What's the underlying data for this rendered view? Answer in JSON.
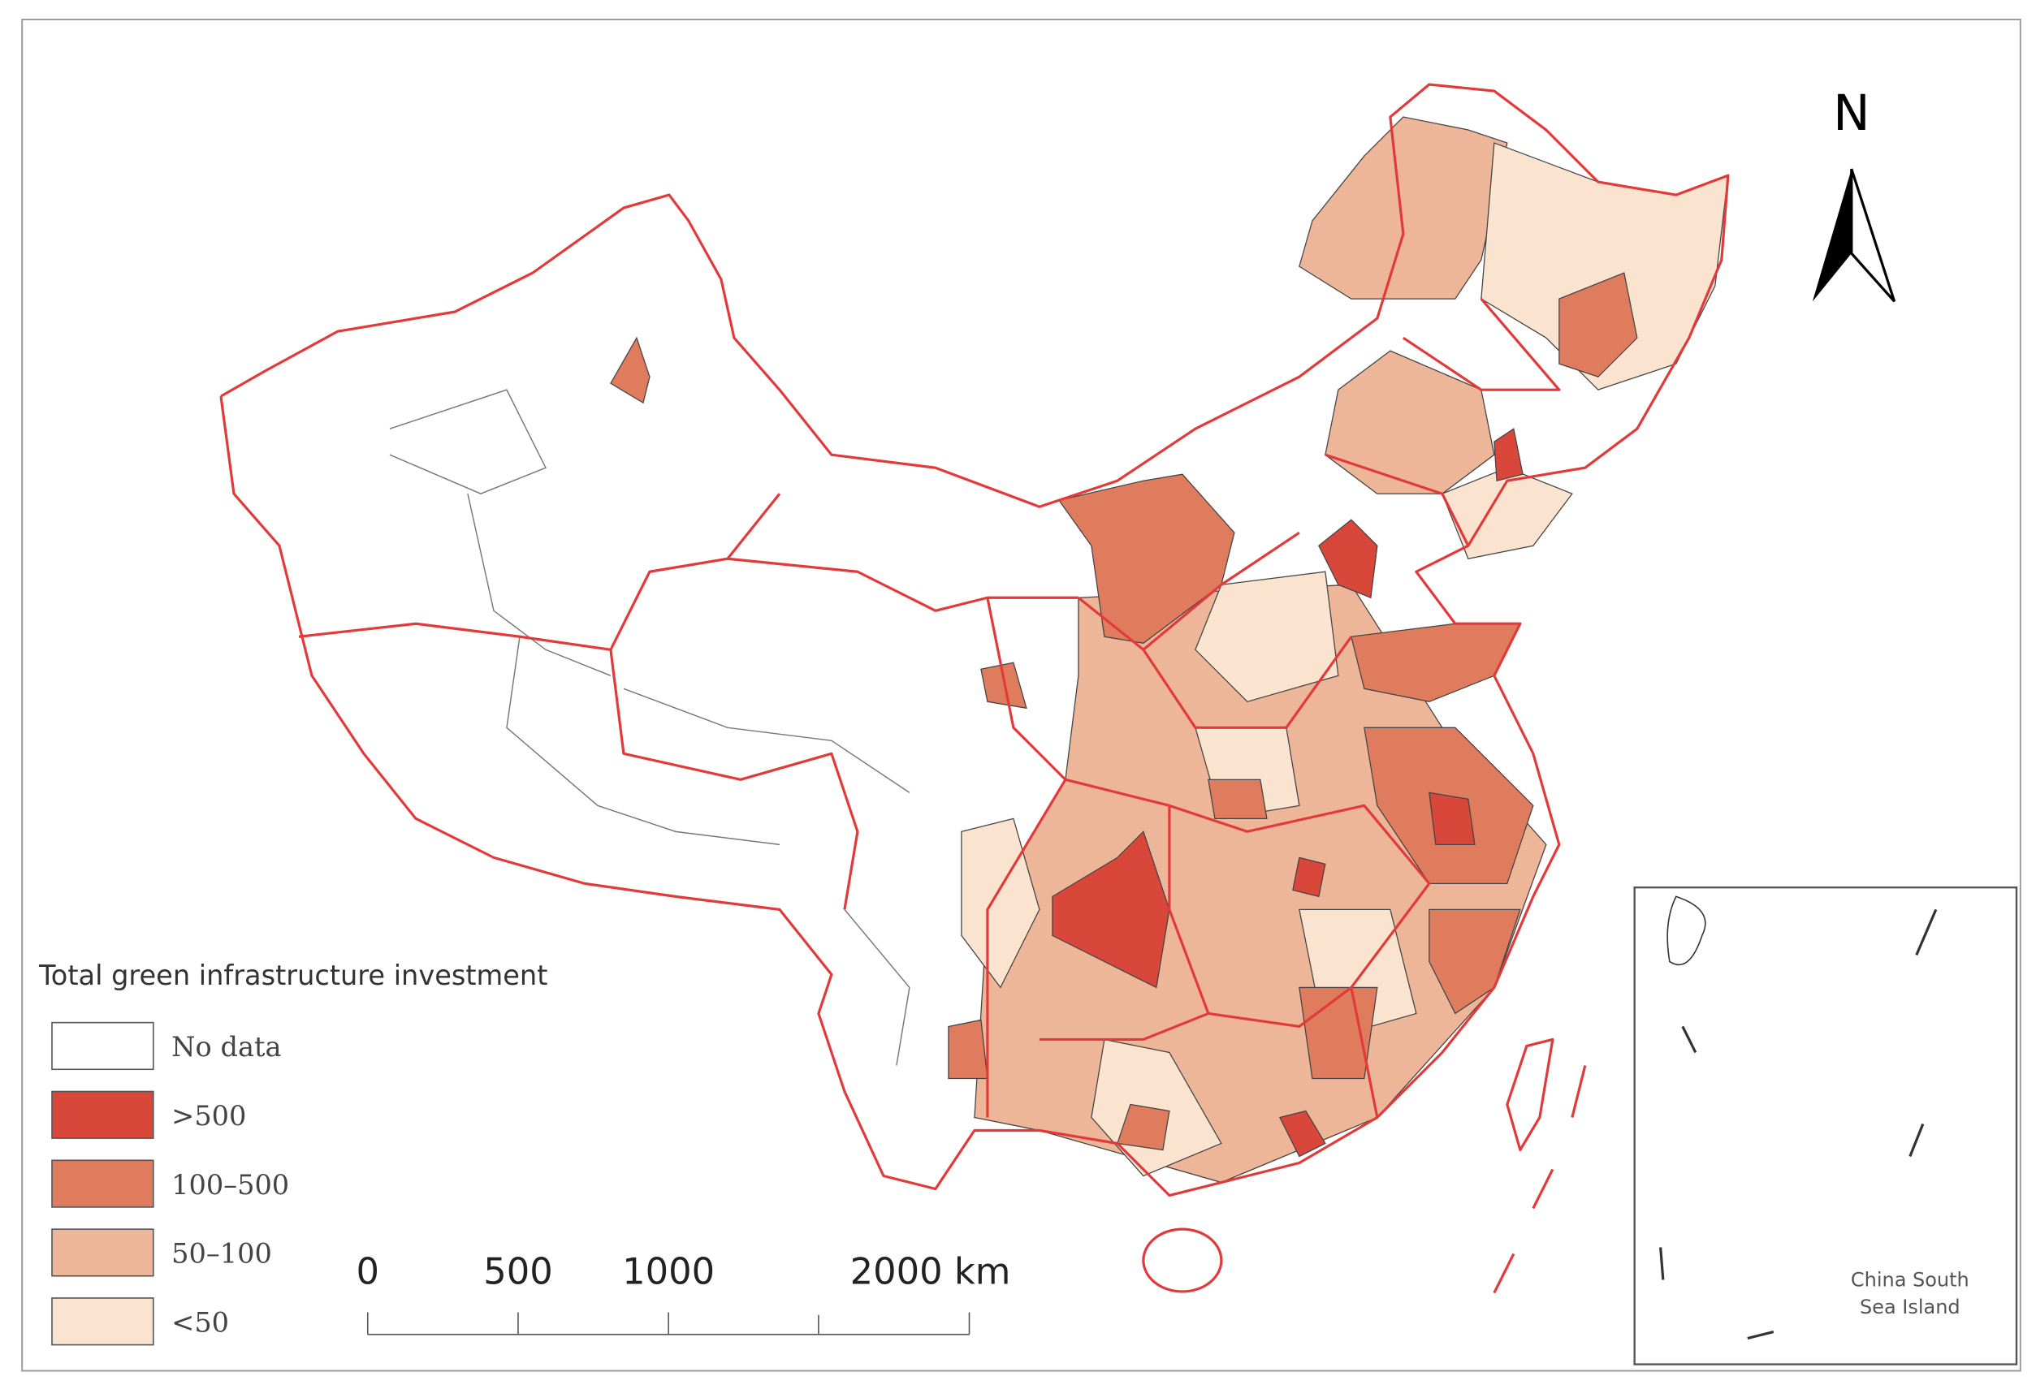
{
  "legend": {
    "title": "Total green infrastructure investment",
    "items": [
      {
        "label": "No data",
        "color": "#ffffff"
      },
      {
        "label": ">500",
        "color": "#d9473a"
      },
      {
        "label": "100–500",
        "color": "#e07c5e"
      },
      {
        "label": "50–100",
        "color": "#edb698"
      },
      {
        "label": "<50",
        "color": "#fbe4cf"
      }
    ]
  },
  "scale_bar": {
    "range": [
      0,
      2000
    ],
    "ticks": [
      0,
      500,
      1000,
      {
        "value": 2000,
        "label": "2000 km"
      }
    ]
  },
  "north_arrow": "N",
  "inset": {
    "label": [
      "China South",
      "Sea Island"
    ]
  }
}
